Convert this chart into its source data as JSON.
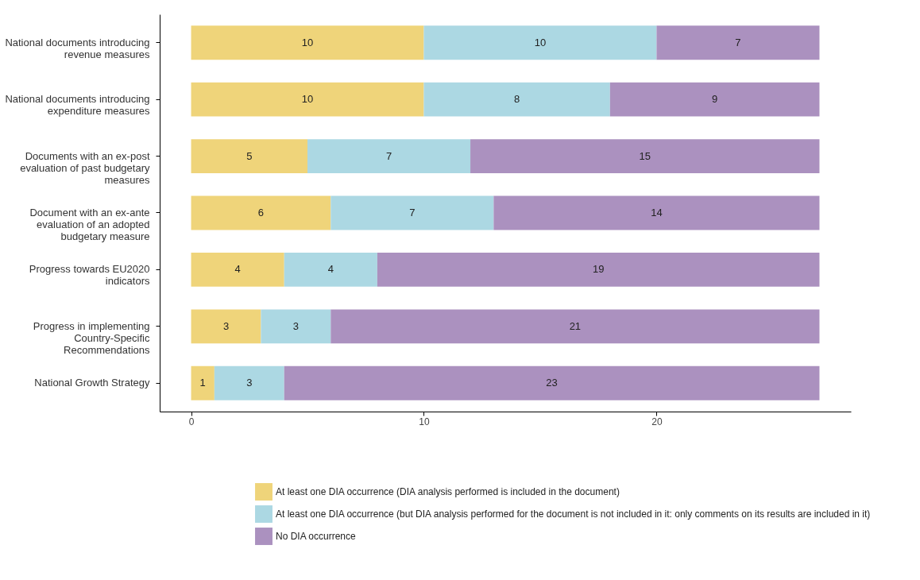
{
  "chart_data": {
    "type": "bar",
    "orientation": "horizontal",
    "stacked": true,
    "data_labels": true,
    "grid": false,
    "legend": "bottom",
    "categories": [
      "National documents introducing revenue measures",
      "National documents introducing expenditure measures",
      "Documents with an ex-post evaluation of past budgetary measures",
      "Document with an ex-ante evaluation of an adopted budgetary measure",
      "Progress towards EU2020 indicators",
      "Progress in implementing Country-Specific Recommendations",
      "National Growth Strategy"
    ],
    "series": [
      {
        "name": "At least one DIA occurrence (DIA analysis performed is included in the document)",
        "color": "#efd47a",
        "values": [
          10,
          10,
          5,
          6,
          4,
          3,
          1
        ]
      },
      {
        "name": "At least one DIA occurrence (but DIA analysis performed for the document is not included in it: only comments on its results are included in it)",
        "color": "#acd8e3",
        "values": [
          10,
          8,
          7,
          7,
          4,
          3,
          3
        ]
      },
      {
        "name": "No DIA occurrence",
        "color": "#ab91bf",
        "values": [
          7,
          9,
          15,
          14,
          19,
          21,
          23
        ]
      }
    ],
    "xlim": [
      -1.35,
      28.35
    ],
    "xticks": [
      0,
      10,
      20
    ]
  }
}
